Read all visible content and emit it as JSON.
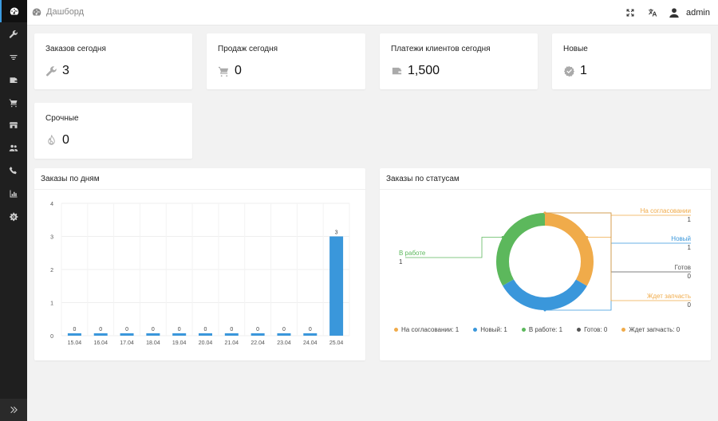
{
  "header": {
    "breadcrumb": "Дашборд",
    "user": "admin"
  },
  "sidebar": {
    "items": [
      {
        "icon": "dashboard-icon"
      },
      {
        "icon": "wrench-icon"
      },
      {
        "icon": "filter-icon"
      },
      {
        "icon": "wallet-icon"
      },
      {
        "icon": "cart-icon"
      },
      {
        "icon": "store-icon"
      },
      {
        "icon": "users-icon"
      },
      {
        "icon": "phone-icon"
      },
      {
        "icon": "bar-chart-icon"
      },
      {
        "icon": "gear-icon"
      }
    ],
    "expand_icon": "double-chevron-right-icon"
  },
  "stats": [
    {
      "title": "Заказов сегодня",
      "value": "3",
      "icon": "wrench-icon"
    },
    {
      "title": "Продаж сегодня",
      "value": "0",
      "icon": "cart-icon"
    },
    {
      "title": "Платежи клиентов сегодня",
      "value": "1,500",
      "icon": "wallet-icon"
    },
    {
      "title": "Новые",
      "value": "1",
      "icon": "badge-check-icon"
    },
    {
      "title": "Срочные",
      "value": "0",
      "icon": "fire-icon"
    }
  ],
  "panels": {
    "days_title": "Заказы по дням",
    "status_title": "Заказы по статусам"
  },
  "chart_data": [
    {
      "type": "bar",
      "title": "Заказы по дням",
      "categories": [
        "15.04",
        "16.04",
        "17.04",
        "18.04",
        "19.04",
        "20.04",
        "21.04",
        "22.04",
        "23.04",
        "24.04",
        "25.04"
      ],
      "values": [
        0,
        0,
        0,
        0,
        0,
        0,
        0,
        0,
        0,
        0,
        3
      ],
      "ylim": [
        0,
        4
      ],
      "yticks": [
        0,
        1,
        2,
        3,
        4
      ],
      "color": "#3a97db",
      "grid": true
    },
    {
      "type": "pie",
      "title": "Заказы по статусам",
      "donut": true,
      "slices": [
        {
          "label": "На согласовании",
          "value": 1,
          "color": "#f0ab4a"
        },
        {
          "label": "Новый",
          "value": 1,
          "color": "#3a97db"
        },
        {
          "label": "В работе",
          "value": 1,
          "color": "#5cb85c"
        },
        {
          "label": "Готов",
          "value": 0,
          "color": "#555555"
        },
        {
          "label": "Ждет запчасть",
          "value": 0,
          "color": "#f0ab4a"
        }
      ],
      "legend_position": "bottom"
    }
  ]
}
